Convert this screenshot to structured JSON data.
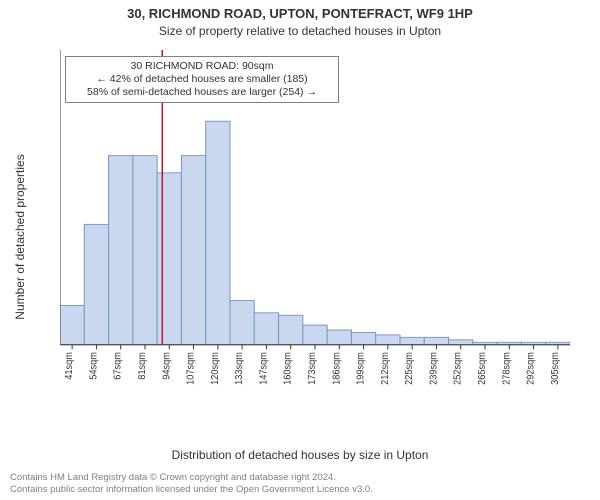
{
  "title_main": "30, RICHMOND ROAD, UPTON, PONTEFRACT, WF9 1HP",
  "title_sub": "Size of property relative to detached houses in Upton",
  "ylabel": "Number of detached properties",
  "xlabel": "Distribution of detached houses by size in Upton",
  "copyright_line1": "Contains HM Land Registry data © Crown copyright and database right 2024.",
  "copyright_line2": "Contains public sector information licensed under the Open Government Licence v3.0.",
  "annotation": {
    "line1": "30 RICHMOND ROAD: 90sqm",
    "line2": "← 42% of detached houses are smaller (185)",
    "line3": "58% of semi-detached houses are larger (254) →"
  },
  "chart": {
    "type": "histogram",
    "ylim": [
      0,
      120
    ],
    "yticks": [
      0,
      20,
      40,
      60,
      80,
      100,
      120
    ],
    "xticks": [
      "41sqm",
      "54sqm",
      "67sqm",
      "81sqm",
      "94sqm",
      "107sqm",
      "120sqm",
      "133sqm",
      "147sqm",
      "160sqm",
      "173sqm",
      "186sqm",
      "199sqm",
      "212sqm",
      "225sqm",
      "239sqm",
      "252sqm",
      "265sqm",
      "278sqm",
      "292sqm",
      "305sqm"
    ],
    "values": [
      16,
      49,
      77,
      77,
      70,
      77,
      91,
      18,
      13,
      12,
      8,
      6,
      5,
      4,
      3,
      3,
      2,
      1,
      1,
      1,
      1
    ],
    "bar_fill": "#c9d8ef",
    "bar_stroke": "#7a93c6",
    "background": "#ffffff",
    "axis_color": "#333333",
    "marker_color": "#c8102e",
    "marker_x_value": 90,
    "x_min": 41,
    "x_max": 305,
    "annot_box_bg": "#ffffff",
    "annot_box_border": "#808080",
    "title_fontsize": 13,
    "sub_fontsize": 12,
    "label_fontsize": 12,
    "tick_fontsize": 11,
    "xtick_fontsize": 10,
    "annot_fontsize": 10.5
  }
}
